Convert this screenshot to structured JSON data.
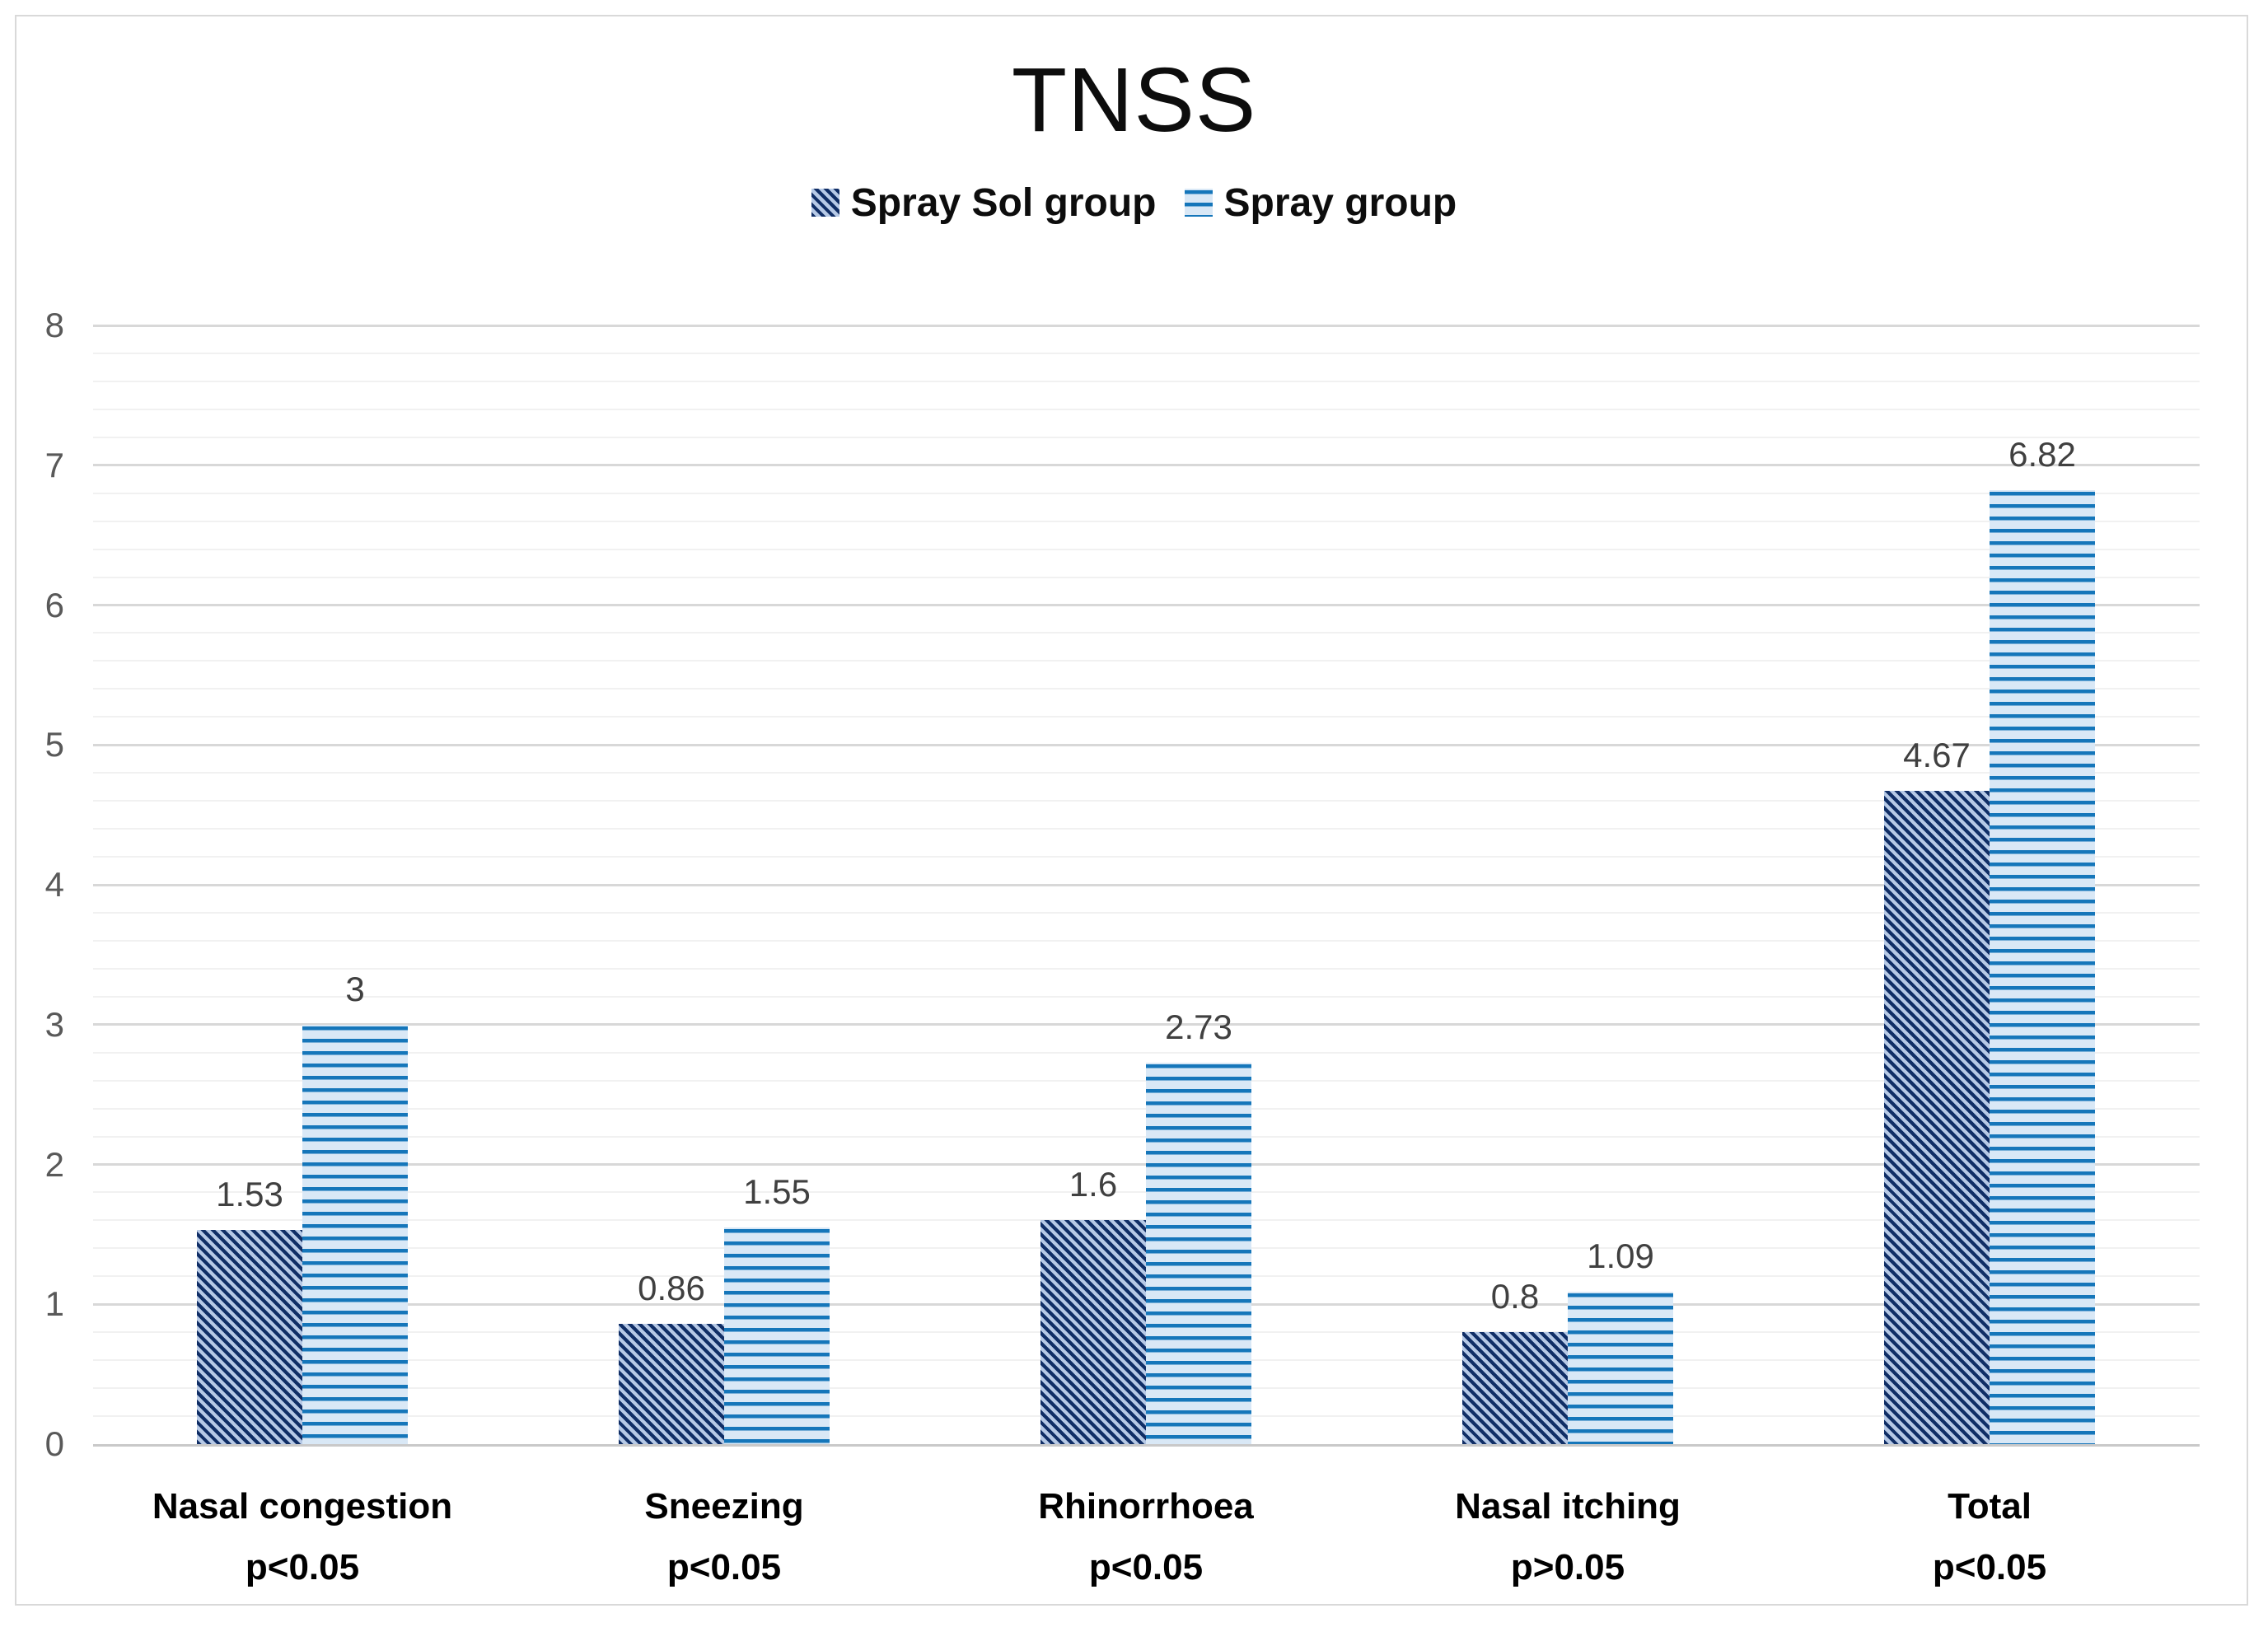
{
  "chart_data": {
    "type": "bar",
    "title": "TNSS",
    "categories": [
      "Nasal congestion",
      "Sneezing",
      "Rhinorrhoea",
      "Nasal itching",
      "Total"
    ],
    "p_values": [
      "p<0.05",
      "p<0.05",
      "p<0.05",
      "p>0.05",
      "p<0.05"
    ],
    "series": [
      {
        "name": "Spray Sol group",
        "values": [
          1.53,
          0.86,
          1.6,
          0.8,
          4.67
        ],
        "value_labels": [
          "1.53",
          "0.86",
          "1.6",
          "0.8",
          "4.67"
        ],
        "pattern": "diagonal-stripes",
        "stripe_color": "#102e66",
        "fill_color": "#b6c9e6"
      },
      {
        "name": "Spray group",
        "values": [
          3,
          1.55,
          2.73,
          1.09,
          6.82
        ],
        "value_labels": [
          "3",
          "1.55",
          "2.73",
          "1.09",
          "6.82"
        ],
        "pattern": "horizontal-stripes",
        "stripe_color": "#1576ba",
        "fill_color": "#d9e8f6"
      }
    ],
    "ylim": [
      0,
      8
    ],
    "yticks": [
      0,
      1,
      2,
      3,
      4,
      5,
      6,
      7,
      8
    ],
    "minor_grid_step": 0.2,
    "grid": "on",
    "legend_position": "top-center"
  }
}
